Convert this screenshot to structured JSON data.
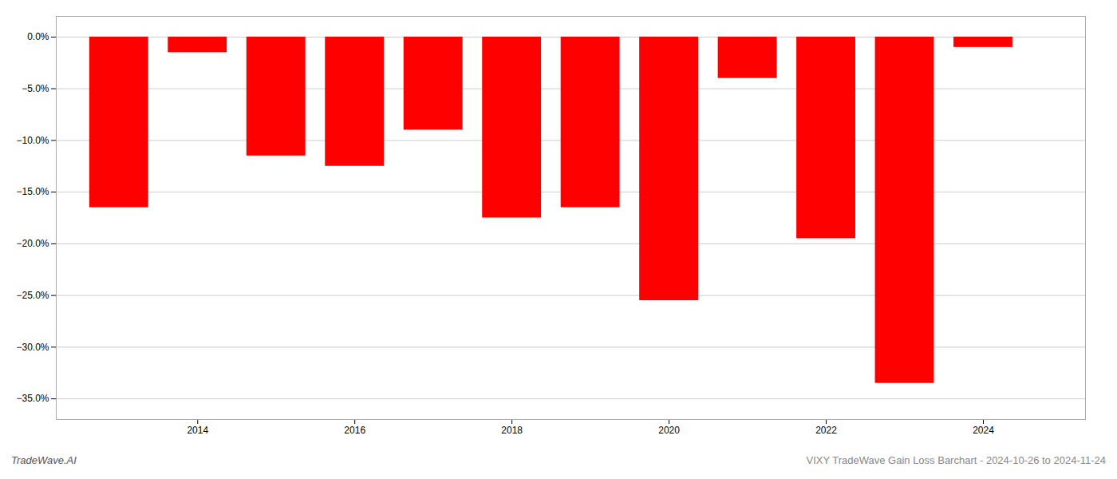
{
  "chart_data": {
    "type": "bar",
    "x": [
      2013,
      2014,
      2015,
      2016,
      2017,
      2018,
      2019,
      2020,
      2021,
      2022,
      2023,
      2024
    ],
    "values": [
      -16.5,
      -1.5,
      -11.5,
      -12.5,
      -9.0,
      -17.5,
      -16.5,
      -25.5,
      -4.0,
      -19.5,
      -33.5,
      -1.0
    ],
    "color": "#ff0000",
    "xlim": [
      2012.2,
      2025.3
    ],
    "xticks": [
      2014,
      2016,
      2018,
      2020,
      2022,
      2024
    ],
    "ylim": [
      -37,
      2.0
    ],
    "yticks": [
      {
        "value": 0.0,
        "label": "0.0%"
      },
      {
        "value": -5.0,
        "label": "−5.0%"
      },
      {
        "value": -10.0,
        "label": "−10.0%"
      },
      {
        "value": -15.0,
        "label": "−15.0%"
      },
      {
        "value": -20.0,
        "label": "−20.0%"
      },
      {
        "value": -25.0,
        "label": "−25.0%"
      },
      {
        "value": -30.0,
        "label": "−30.0%"
      },
      {
        "value": -35.0,
        "label": "−35.0%"
      }
    ],
    "grid": true,
    "annotations": [
      "TradeWave.AI",
      "VIXY TradeWave Gain Loss Barchart - 2024-10-26 to 2024-11-24"
    ]
  }
}
